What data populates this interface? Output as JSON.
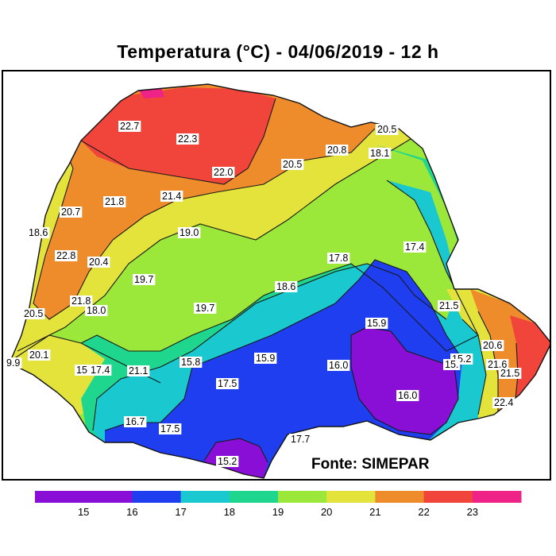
{
  "title": "Temperatura (°C) - 04/06/2019 - 12 h",
  "source": "Fonte: SIMEPAR",
  "colors": {
    "purple": "#8a0fd6",
    "blue": "#1e3ef0",
    "cyan": "#19c9cf",
    "teal": "#1fd68e",
    "green": "#9be83a",
    "yellow": "#e3e33c",
    "orange": "#ee8c2c",
    "red": "#f1453c",
    "magenta": "#ef2288",
    "contour": "#1a1a1a"
  },
  "map_labels": [
    {
      "text": "22.7"
    },
    {
      "text": "22.3"
    },
    {
      "text": "22.0"
    },
    {
      "text": "20.5"
    },
    {
      "text": "20.8"
    },
    {
      "text": "18.1"
    },
    {
      "text": "20.5"
    },
    {
      "text": "21.8"
    },
    {
      "text": "21.4"
    },
    {
      "text": "20.7"
    },
    {
      "text": "19.0"
    },
    {
      "text": "18.6"
    },
    {
      "text": "22.8"
    },
    {
      "text": "20.4"
    },
    {
      "text": "17.4"
    },
    {
      "text": "17.8"
    },
    {
      "text": "19.7"
    },
    {
      "text": "18.6"
    },
    {
      "text": "21.8"
    },
    {
      "text": "18.0"
    },
    {
      "text": "21.5"
    },
    {
      "text": "20.5"
    },
    {
      "text": "19.7"
    },
    {
      "text": "15.9"
    },
    {
      "text": "20.1"
    },
    {
      "text": "9.9"
    },
    {
      "text": "15"
    },
    {
      "text": "17.4"
    },
    {
      "text": "21.1"
    },
    {
      "text": "15.8"
    },
    {
      "text": "15.9"
    },
    {
      "text": "16.0"
    },
    {
      "text": "15.2"
    },
    {
      "text": "15."
    },
    {
      "text": "20.6"
    },
    {
      "text": "21.6"
    },
    {
      "text": "21.5"
    },
    {
      "text": "17.5"
    },
    {
      "text": "16.0"
    },
    {
      "text": "22.4"
    },
    {
      "text": "16.7"
    },
    {
      "text": "17.5"
    },
    {
      "text": "17.7"
    },
    {
      "text": "15.2"
    }
  ],
  "legend": {
    "ticks": [
      "15",
      "16",
      "17",
      "18",
      "19",
      "20",
      "21",
      "22",
      "23"
    ],
    "bin_colors": [
      "#8a0fd6",
      "#8a0fd6",
      "#1e3ef0",
      "#19c9cf",
      "#1fd68e",
      "#9be83a",
      "#e3e33c",
      "#ee8c2c",
      "#f1453c",
      "#ef2288"
    ]
  }
}
